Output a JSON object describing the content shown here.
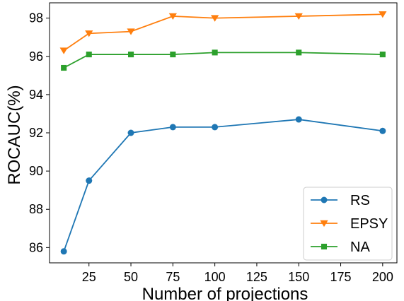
{
  "chart_data": {
    "type": "line",
    "title": "",
    "xlabel": "Number of projections",
    "ylabel": "ROCAUC(%)",
    "xlim": [
      1.5,
      208.5
    ],
    "ylim": [
      85.2,
      98.8
    ],
    "xticks": [
      25,
      50,
      75,
      100,
      125,
      150,
      175,
      200
    ],
    "yticks": [
      86,
      88,
      90,
      92,
      94,
      96,
      98
    ],
    "grid": false,
    "legend_position": "lower-right",
    "series": [
      {
        "name": "RS",
        "color": "#1f77b4",
        "marker": "circle",
        "x": [
          10,
          25,
          50,
          75,
          100,
          150,
          200
        ],
        "y": [
          85.8,
          89.5,
          92.0,
          92.3,
          92.3,
          92.7,
          92.1
        ]
      },
      {
        "name": "EPSY",
        "color": "#ff7f0e",
        "marker": "triangle-down",
        "x": [
          10,
          25,
          50,
          75,
          100,
          150,
          200
        ],
        "y": [
          96.3,
          97.2,
          97.3,
          98.1,
          98.0,
          98.1,
          98.2
        ]
      },
      {
        "name": "NA",
        "color": "#2ca02c",
        "marker": "square",
        "x": [
          10,
          25,
          50,
          75,
          100,
          150,
          200
        ],
        "y": [
          95.4,
          96.1,
          96.1,
          96.1,
          96.2,
          96.2,
          96.1
        ]
      }
    ]
  }
}
